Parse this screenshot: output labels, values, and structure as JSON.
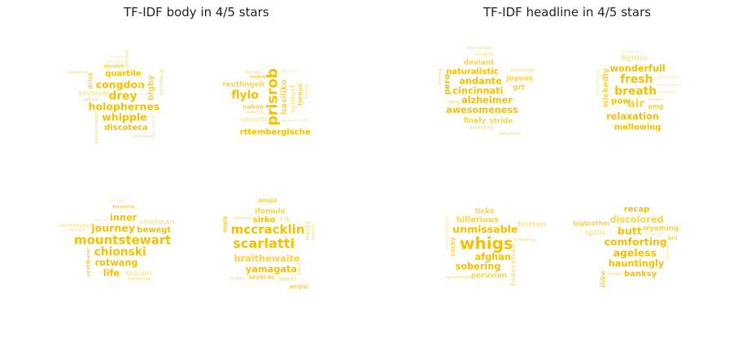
{
  "chart_data": [
    {
      "type": "wordcloud",
      "title": "TF-IDF body in 4/5 stars",
      "clouds": [
        {
          "label": "",
          "words": [
            [
              "holophernes",
              10
            ],
            [
              "drey",
              11
            ],
            [
              "congdon",
              10
            ],
            [
              "whipple",
              10
            ],
            [
              "quartile",
              8
            ],
            [
              "bigby",
              8
            ],
            [
              "discoteca",
              8
            ],
            [
              "croyton",
              8
            ],
            [
              "squeezer",
              6
            ],
            [
              "heinberg",
              5
            ],
            [
              "exxonmobil",
              5
            ],
            [
              "deodat",
              5
            ],
            [
              "driss",
              6
            ],
            [
              "woobox",
              4
            ],
            [
              "geleen",
              4
            ],
            [
              "mouthful",
              3
            ],
            [
              "schmidt",
              3
            ],
            [
              "bhutan",
              3
            ],
            [
              "unbiased",
              3
            ],
            [
              "minimal",
              3
            ],
            [
              "chocolates",
              3
            ],
            [
              "rainbows",
              3
            ]
          ]
        },
        {
          "label": "",
          "words": [
            [
              "prisrob",
              14
            ],
            [
              "flylo",
              11
            ],
            [
              "rttembergische",
              8
            ],
            [
              "basiliko",
              8
            ],
            [
              "schlurf",
              7
            ],
            [
              "reutlingen",
              7
            ],
            [
              "nahan",
              6
            ],
            [
              "comunti",
              6
            ],
            [
              "tereus",
              6
            ],
            [
              "muhe",
              5
            ],
            [
              "fleirich",
              4
            ],
            [
              "sosothewski",
              4
            ],
            [
              "fortalis",
              3
            ],
            [
              "sowerby",
              4
            ],
            [
              "marsay",
              3
            ]
          ]
        },
        {
          "label": "",
          "words": [
            [
              "mountstewart",
              12
            ],
            [
              "journey",
              10
            ],
            [
              "chionski",
              11
            ],
            [
              "rotwang",
              9
            ],
            [
              "inner",
              9
            ],
            [
              "life",
              9
            ],
            [
              "watchreadreview",
              7
            ],
            [
              "chatman",
              7
            ],
            [
              "bewegt",
              8
            ],
            [
              "weissensee",
              5
            ],
            [
              "linguini",
              6
            ],
            [
              "vestibular",
              5
            ],
            [
              "honoria",
              5
            ],
            [
              "cheval",
              4
            ],
            [
              "scorpio",
              3
            ],
            [
              "fieldbrook",
              3
            ],
            [
              "recipes",
              3
            ]
          ]
        },
        {
          "label": "",
          "words": [
            [
              "mccracklin",
              12
            ],
            [
              "scarlatti",
              13
            ],
            [
              "braithewaite",
              9
            ],
            [
              "yamagata",
              9
            ],
            [
              "sirko",
              8
            ],
            [
              "ifemulu",
              7
            ],
            [
              "severac",
              6
            ],
            [
              "haida",
              6
            ],
            [
              "lahiri",
              6
            ],
            [
              "sord",
              5
            ],
            [
              "anuja",
              6
            ],
            [
              "acqui",
              6
            ],
            [
              "mala",
              6
            ],
            [
              "salim",
              5
            ],
            [
              "cq",
              7
            ],
            [
              "mounts",
              4
            ],
            [
              "thibaut",
              3
            ],
            [
              "tessellations",
              4
            ]
          ]
        }
      ]
    },
    {
      "type": "wordcloud",
      "title": "TF-IDF headline in 4/5 stars",
      "clouds": [
        {
          "label": "",
          "words": [
            [
              "cincinnati",
              9
            ],
            [
              "andante",
              9
            ],
            [
              "alzheimer",
              9
            ],
            [
              "awesomeness",
              9
            ],
            [
              "naturalistic",
              8
            ],
            [
              "pero",
              8
            ],
            [
              "deviant",
              7
            ],
            [
              "finely",
              7
            ],
            [
              "stride",
              7
            ],
            [
              "frailties",
              7
            ],
            [
              "joyous",
              7
            ],
            [
              "grt",
              7
            ],
            [
              "sidestep",
              5
            ],
            [
              "charmingly",
              4
            ],
            [
              "thoughtful",
              4
            ],
            [
              "societies",
              4
            ],
            [
              "proving",
              4
            ],
            [
              "ekoel",
              3
            ],
            [
              "forgotten",
              3
            ]
          ]
        },
        {
          "label": "",
          "words": [
            [
              "wonderfull",
              9
            ],
            [
              "relaxation",
              9
            ],
            [
              "intelligently",
              7
            ],
            [
              "wickedly",
              8
            ],
            [
              "mellowing",
              8
            ],
            [
              "breath",
              11
            ],
            [
              "fresh",
              11
            ],
            [
              "air",
              11
            ],
            [
              "pow",
              8
            ],
            [
              "pmg",
              6
            ],
            [
              "fightin",
              7
            ],
            [
              "naughties",
              4
            ],
            [
              "grandkids",
              4
            ],
            [
              "cookies",
              4
            ],
            [
              "trawer",
              4
            ],
            [
              "electrifying",
              4
            ],
            [
              "mastery",
              3
            ]
          ]
        },
        {
          "label": "",
          "words": [
            [
              "whigs",
              16
            ],
            [
              "unmissable",
              10
            ],
            [
              "afghan",
              9
            ],
            [
              "hillarious",
              8
            ],
            [
              "sobering",
              9
            ],
            [
              "peruvian",
              7
            ],
            [
              "ticks",
              7
            ],
            [
              "cocky",
              6
            ],
            [
              "britten",
              7
            ],
            [
              "federation",
              7
            ],
            [
              "compassionate",
              4
            ],
            [
              "oddfellows",
              5
            ],
            [
              "swashbuckler",
              5
            ],
            [
              "bumbling",
              3
            ],
            [
              "goosebumps",
              3
            ]
          ]
        },
        {
          "label": "",
          "words": [
            [
              "comforting",
              10
            ],
            [
              "ageless",
              10
            ],
            [
              "hauntingly",
              9
            ],
            [
              "butt",
              10
            ],
            [
              "discolored",
              9
            ],
            [
              "highwayscribery",
              9
            ],
            [
              "wyoming",
              7
            ],
            [
              "banksy",
              8
            ],
            [
              "spills",
              7
            ],
            [
              "recap",
              8
            ],
            [
              "ilike",
              7
            ],
            [
              "tantalising",
              6
            ],
            [
              "entrepreneur",
              5
            ],
            [
              "bril",
              5
            ],
            [
              "bigbrother",
              6
            ],
            [
              "reliving",
              4
            ],
            [
              "ginnings",
              3
            ],
            [
              "wiggle",
              3
            ]
          ]
        }
      ]
    }
  ],
  "colors": {
    "gold": "#f5c000",
    "gold_light": "#f7d24a",
    "pale": "#f8e6a3",
    "very_pale": "#f9eec8",
    "title": "#222222"
  }
}
